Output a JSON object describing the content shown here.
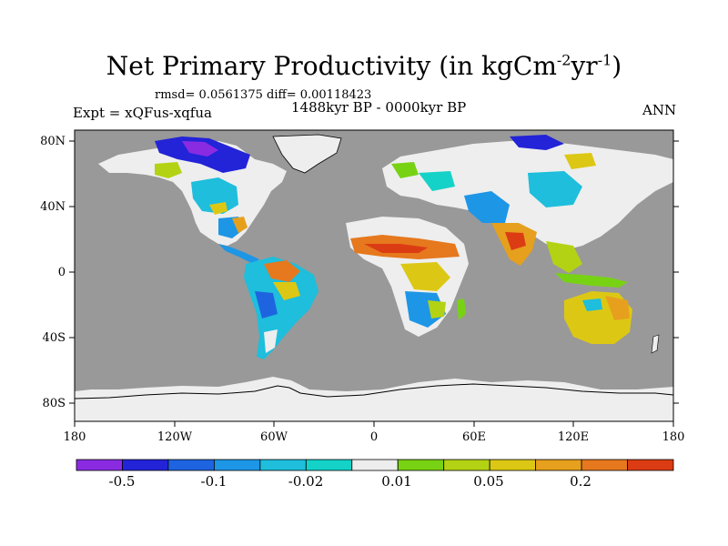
{
  "title": {
    "main": "Net Primary Productivity (in kgCm",
    "sup1": "-2",
    "mid": "yr",
    "sup2": "-1",
    "end": ")"
  },
  "stats": "rmsd= 0.0561375 diff= 0.00118423",
  "left_label": "Expt = xQFus-xqfua",
  "center_label": "1488kyr BP - 0000kyr BP",
  "right_label": "ANN",
  "map": {
    "ocean_color": "#999999",
    "lat_ticks": [
      "80N",
      "40N",
      "0",
      "40S",
      "80S"
    ],
    "lon_ticks": [
      "180",
      "120W",
      "60W",
      "0",
      "60E",
      "120E",
      "180"
    ]
  },
  "colorbar": {
    "colors": [
      "#8a2be2",
      "#2323d8",
      "#1e64e0",
      "#1e96e6",
      "#1ebedc",
      "#14d2c8",
      "#ededed",
      "#78d214",
      "#b4d214",
      "#dcc814",
      "#e6a01e",
      "#e6781e",
      "#dc3c14"
    ],
    "labels": [
      "-0.5",
      "-0.1",
      "-0.02",
      "0.01",
      "0.05",
      "0.2"
    ]
  }
}
